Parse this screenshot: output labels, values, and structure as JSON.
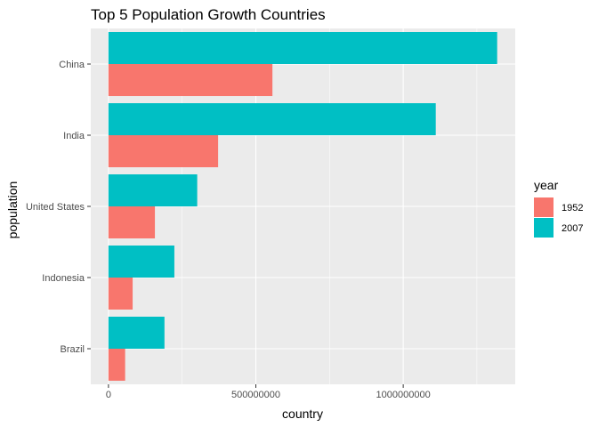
{
  "chart_data": {
    "type": "bar",
    "orientation": "horizontal",
    "title": "Top 5 Population Growth Countries",
    "xlabel": "country",
    "ylabel": "population",
    "categories": [
      "China",
      "India",
      "United States",
      "Indonesia",
      "Brazil"
    ],
    "series": [
      {
        "name": "1952",
        "color": "#F8766D",
        "values": [
          556263527,
          372000000,
          157553000,
          82052000,
          56602560
        ]
      },
      {
        "name": "2007",
        "color": "#00BFC4",
        "values": [
          1318683096,
          1110396331,
          301139947,
          223547000,
          190010647
        ]
      }
    ],
    "xlim": [
      -60000000,
      1380000000
    ],
    "xticks": [
      0,
      500000000,
      1000000000
    ],
    "xtick_labels": [
      "0",
      "500000000",
      "1000000000"
    ],
    "grid": true,
    "legend": {
      "title": "year",
      "position": "right"
    },
    "background": "#EBEBEB",
    "gridline_color": "#FFFFFF"
  }
}
